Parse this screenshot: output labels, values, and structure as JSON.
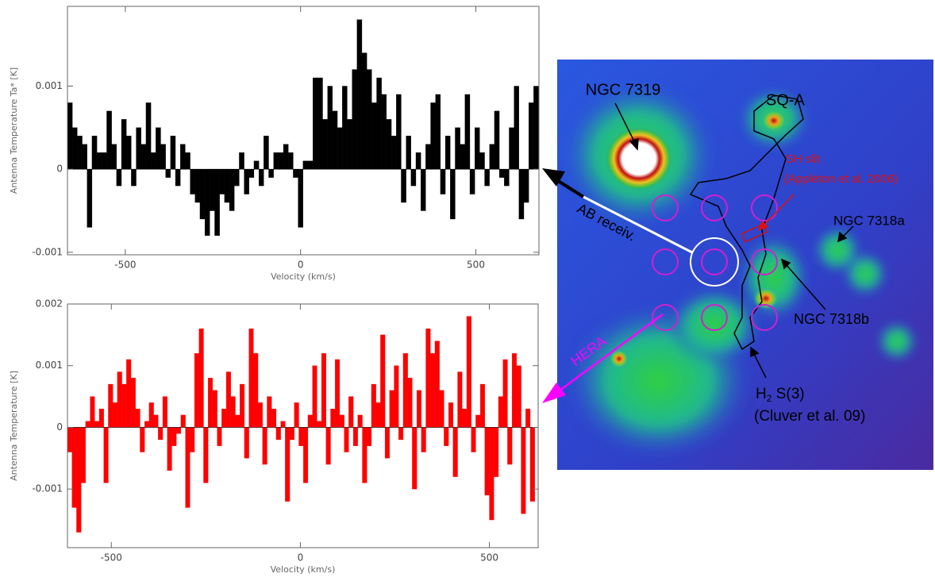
{
  "chart_data": [
    {
      "type": "bar",
      "ylabel": "Antenna Temperature Ta* [K]",
      "xlabel": "Velocity (km/s)",
      "color": "#000000",
      "xlim": [
        -665,
        680
      ],
      "xticks": [
        -500,
        0,
        500
      ],
      "ylim": [
        -0.00103,
        0.00196
      ],
      "yticks": [
        -0.001,
        0,
        0.001
      ],
      "x": [
        -658,
        -644,
        -630,
        -616,
        -602,
        -588,
        -574,
        -560,
        -546,
        -532,
        -518,
        -504,
        -490,
        -476,
        -462,
        -448,
        -434,
        -420,
        -406,
        -392,
        -378,
        -364,
        -350,
        -336,
        -322,
        -308,
        -294,
        -280,
        -266,
        -252,
        -238,
        -224,
        -210,
        -196,
        -182,
        -168,
        -154,
        -140,
        -126,
        -112,
        -98,
        -84,
        -70,
        -56,
        -42,
        -28,
        -14,
        0,
        14,
        28,
        42,
        56,
        70,
        84,
        98,
        112,
        126,
        140,
        154,
        168,
        182,
        196,
        210,
        224,
        238,
        252,
        266,
        280,
        294,
        308,
        322,
        336,
        350,
        364,
        378,
        392,
        406,
        420,
        434,
        448,
        462,
        476,
        490,
        504,
        518,
        532,
        546,
        560,
        574,
        588,
        602,
        616,
        630,
        644,
        658,
        672
      ],
      "values": [
        0.0008,
        0.0005,
        0.0004,
        0.0003,
        -0.0007,
        0.0004,
        0.0002,
        0.0002,
        0.0007,
        0.0003,
        -0.0002,
        0.0006,
        0.0004,
        -0.0002,
        0.0005,
        0.0003,
        0.0008,
        0.0002,
        0.0005,
        0.0003,
        -0.0001,
        0.0004,
        -0.0002,
        0.0003,
        0.0002,
        -0.0003,
        -0.0004,
        -0.0006,
        -0.0008,
        -0.0005,
        -0.0008,
        -0.0003,
        -0.0004,
        -0.0005,
        -0.0002,
        0.0002,
        -0.0003,
        -0.0001,
        0.0001,
        -0.0002,
        0.0004,
        -0.0001,
        0.0002,
        0.0002,
        0.0003,
        0.0002,
        -0.0001,
        -0.0007,
        0.0001,
        0.0001,
        0.0011,
        0.0011,
        0.0006,
        0.001,
        0.0007,
        0.0005,
        0.001,
        0.0006,
        0.0012,
        0.0018,
        0.0014,
        0.0012,
        0.0008,
        0.0011,
        0.0009,
        0.0006,
        0.0004,
        0.0009,
        -0.0004,
        0.0004,
        -0.0002,
        0.0002,
        -0.0005,
        0.0003,
        0.0008,
        0.0009,
        -0.0003,
        0.0004,
        -0.0006,
        0.0005,
        0.0003,
        0.0009,
        -0.0003,
        0.0005,
        0.0002,
        -0.0002,
        0.0003,
        0.0007,
        -0.0001,
        -0.0002,
        0.0005,
        0.001,
        -0.0006,
        -0.0004,
        0.0008,
        0.001
      ]
    },
    {
      "type": "bar",
      "ylabel": "Antenna Temperature [K]",
      "xlabel": "Velocity (km/s)",
      "color": "#ff0000",
      "xlim": [
        -616,
        629
      ],
      "xticks": [
        -500,
        0,
        500
      ],
      "ylim": [
        -0.00195,
        0.002
      ],
      "yticks": [
        -0.001,
        0,
        0.001,
        0.002
      ],
      "x": [
        -610,
        -598,
        -586,
        -574,
        -562,
        -550,
        -538,
        -526,
        -514,
        -502,
        -490,
        -478,
        -466,
        -454,
        -442,
        -430,
        -418,
        -406,
        -394,
        -382,
        -370,
        -358,
        -346,
        -334,
        -322,
        -310,
        -298,
        -286,
        -274,
        -262,
        -250,
        -238,
        -226,
        -214,
        -202,
        -190,
        -178,
        -166,
        -154,
        -142,
        -130,
        -118,
        -106,
        -94,
        -82,
        -70,
        -58,
        -46,
        -34,
        -22,
        -10,
        2,
        14,
        26,
        38,
        50,
        62,
        74,
        86,
        98,
        110,
        122,
        134,
        146,
        158,
        170,
        182,
        194,
        206,
        218,
        230,
        242,
        254,
        266,
        278,
        290,
        302,
        314,
        326,
        338,
        350,
        362,
        374,
        386,
        398,
        410,
        422,
        434,
        446,
        458,
        470,
        482,
        494,
        506,
        518,
        530,
        542,
        554,
        566,
        578,
        590,
        602,
        614
      ],
      "values": [
        -0.0004,
        -0.0013,
        -0.0017,
        -0.0009,
        0.0001,
        0.0005,
        0.0001,
        0.0003,
        -0.0009,
        0.0007,
        0.0004,
        0.0009,
        0.0007,
        0.0011,
        0.0008,
        0.0003,
        -0.0004,
        0.0001,
        0.0004,
        0.0002,
        -0.0002,
        0.0005,
        -0.0007,
        -0.0003,
        -0.0001,
        0.0002,
        -0.0013,
        -0.0004,
        0.0012,
        0.0016,
        -0.0009,
        0.0008,
        0.0006,
        -0.0003,
        0.0003,
        0.0009,
        0.0005,
        0.0002,
        0.0007,
        -0.0005,
        0.0016,
        0.0012,
        0.0004,
        -0.0006,
        0.0005,
        0.0003,
        -0.0002,
        0.0001,
        -0.0012,
        -0.0002,
        0.0004,
        -0.0003,
        -0.0009,
        0.0002,
        0.001,
        0.0001,
        0.0012,
        -0.0006,
        0.0003,
        0.0011,
        0.0002,
        -0.0004,
        0.0005,
        -0.0003,
        0.0002,
        -0.0009,
        -0.0003,
        0.0007,
        0.0004,
        0.0015,
        -0.0005,
        0.0006,
        0.001,
        -0.0002,
        0.0012,
        0.0008,
        -0.001,
        0.0006,
        -0.0004,
        0.0016,
        0.0012,
        0.0014,
        0.0006,
        -0.0003,
        0.0004,
        -0.0008,
        0.0009,
        0.0003,
        0.0018,
        -0.0004,
        0.0002,
        0.0007,
        -0.0011,
        -0.0015,
        -0.0008,
        0.0005,
        0.0011,
        -0.0006,
        0.0012,
        0.001,
        -0.0014,
        0.0003,
        -0.0012
      ]
    }
  ],
  "image": {
    "labels": {
      "ngc7319": "NGC 7319",
      "sqa": "SQ-A",
      "sh_slit": "SH slit",
      "appleton": "(Appleton et al. 2006)",
      "ngc7318a": "NGC 7318a",
      "ab": "AB receiv.",
      "ngc7318b": "NGC 7318b",
      "hera": "HERA",
      "h2": {
        "main": "H",
        "sub": "2",
        "rest": " S(3)"
      },
      "cluver": "(Cluver et al. 09)"
    }
  }
}
